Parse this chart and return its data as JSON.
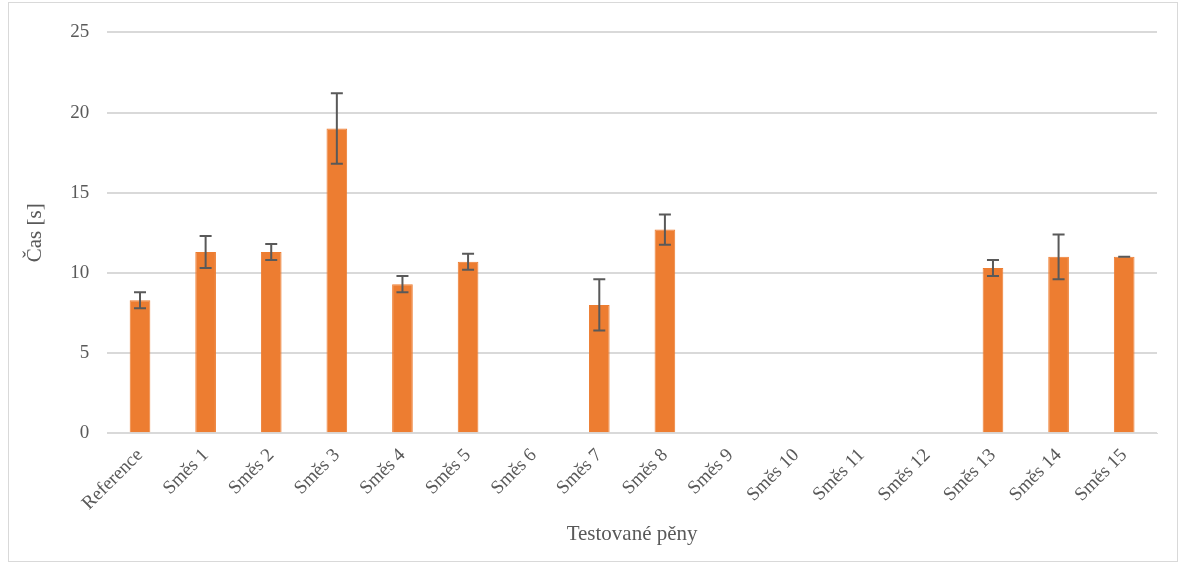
{
  "chart_data": {
    "type": "bar",
    "xlabel": "Testované pěny",
    "ylabel": "Čas [s]",
    "categories": [
      "Reference",
      "Směs 1",
      "Směs 2",
      "Směs 3",
      "Směs 4",
      "Směs 5",
      "Směs 6",
      "Směs 7",
      "Směs 8",
      "Směs 9",
      "Směs 10",
      "Směs 11",
      "Směs 12",
      "Směs 13",
      "Směs 14",
      "Směs 15"
    ],
    "values": [
      8.3,
      11.3,
      11.3,
      19.0,
      9.3,
      10.7,
      0,
      8.0,
      12.7,
      0,
      0,
      0,
      0,
      10.3,
      11.0,
      11.0
    ],
    "errors": [
      0.5,
      1.0,
      0.5,
      2.2,
      0.5,
      0.5,
      null,
      1.6,
      0.95,
      null,
      null,
      null,
      null,
      0.5,
      1.4,
      0
    ],
    "color": "#ed7d31",
    "ylim": [
      0,
      25
    ],
    "yticks": [
      0,
      5,
      10,
      15,
      20,
      25
    ],
    "grid": "y",
    "legend": false
  }
}
